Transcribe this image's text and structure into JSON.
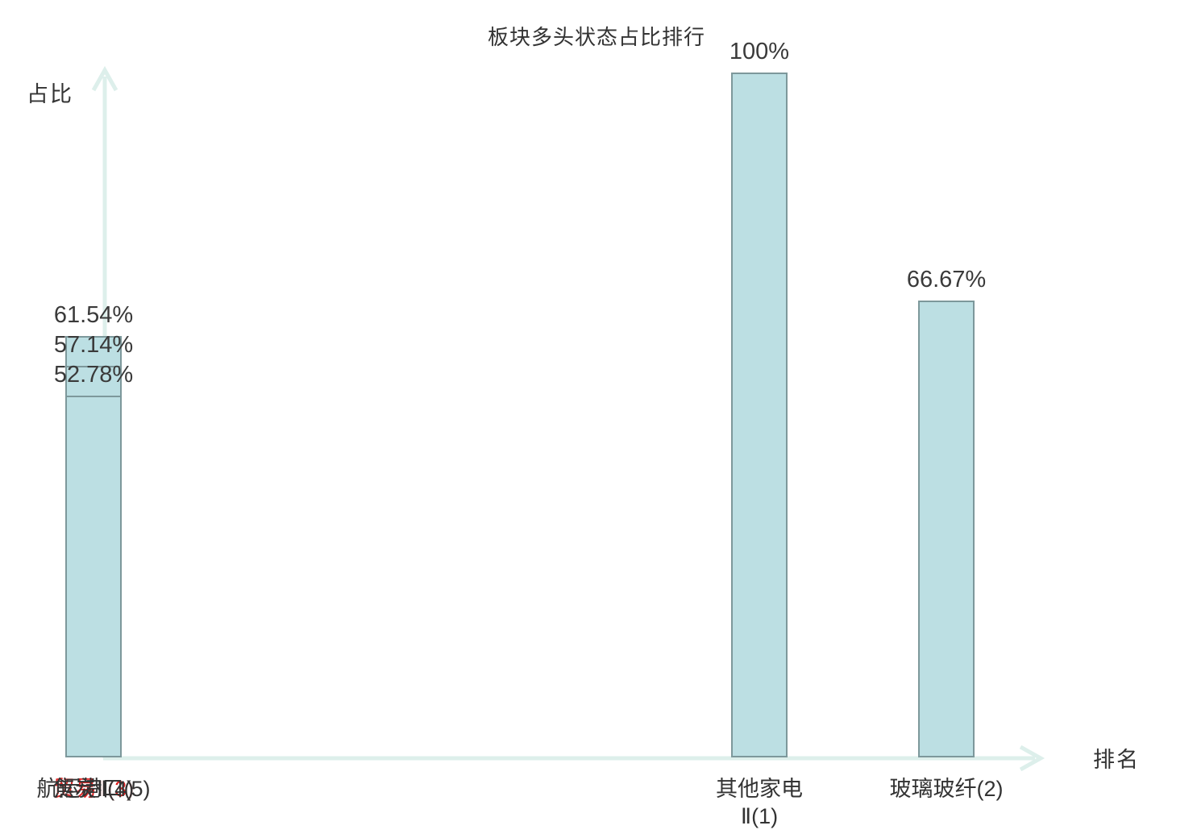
{
  "chart_data": {
    "type": "bar",
    "title": "板块多头状态占比排行",
    "xlabel": "排名",
    "ylabel": "占比",
    "categories": [
      "其他家电Ⅱ(1)",
      "玻璃玻纤(2)",
      "贸易Ⅱ(3)",
      "焦炭Ⅱ(4)",
      "航运港口(5)"
    ],
    "categories_display": [
      "其他家电\nⅡ(1)",
      "玻璃玻纤(2)",
      "贸易Ⅱ(3)",
      "焦炭Ⅱ(4)",
      "航运港口(5)"
    ],
    "values": [
      100,
      66.67,
      61.54,
      57.14,
      52.78
    ],
    "value_labels": [
      "100%",
      "66.67%",
      "61.54%",
      "57.14%",
      "52.78%"
    ],
    "ylim": [
      0,
      100
    ],
    "grid": false,
    "legend": "none",
    "highlight_index": 2,
    "colors": {
      "bar_fill": "#bcdfe3",
      "bar_border": "#7d989b",
      "axis": "#ddefeb",
      "text": "#333333",
      "value_text": "#3a3a3a",
      "highlight": "#e02020"
    }
  }
}
